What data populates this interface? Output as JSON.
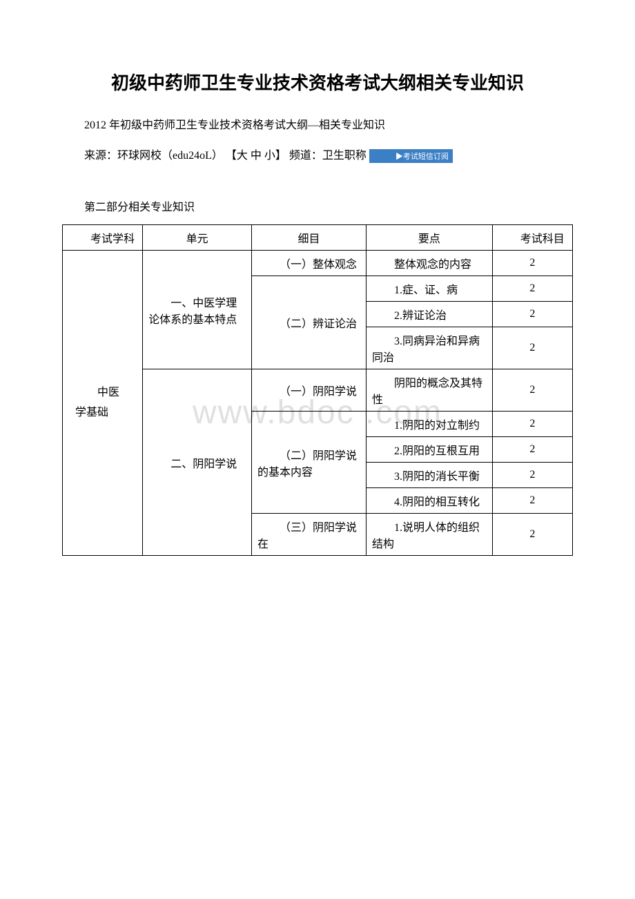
{
  "page": {
    "main_title": "初级中药师卫生专业技术资格考试大纲相关专业知识",
    "subtitle": "2012 年初级中药师卫生专业技术资格考试大纲—相关专业知识",
    "source_prefix": "来源：环球网校（edu24oL） ",
    "size_options": "【大 中 小】",
    "channel_label": " 频道：卫生职称 ",
    "sms_badge": "▶考试短信订阅",
    "section_title": "第二部分相关专业知识",
    "watermark": "www.bdoc .com"
  },
  "table": {
    "headers": {
      "col1": "考试学科",
      "col2": "单元",
      "col3": "细目",
      "col4": "要点",
      "col5": "考试科目"
    },
    "subject": "中医学基础",
    "units": [
      {
        "unit_label": "一、中医学理论体系的基本特点",
        "items": [
          {
            "item_label": "（一）整体观念",
            "points": [
              {
                "text": "整体观念的内容",
                "score": "2"
              }
            ]
          },
          {
            "item_label": "（二）辨证论治",
            "points": [
              {
                "text": "1.症、证、病",
                "score": "2"
              },
              {
                "text": "2.辨证论治",
                "score": "2"
              },
              {
                "text": "3.同病异治和异病同治",
                "score": "2"
              }
            ]
          }
        ]
      },
      {
        "unit_label": "二、阴阳学说",
        "items": [
          {
            "item_label": "（一）阴阳学说",
            "points": [
              {
                "text": "阴阳的概念及其特性",
                "score": "2"
              }
            ]
          },
          {
            "item_label": "（二）阴阳学说的基本内容",
            "points": [
              {
                "text": "1.阴阳的对立制约",
                "score": "2"
              },
              {
                "text": "2.阴阳的互根互用",
                "score": "2"
              },
              {
                "text": "3.阴阳的消长平衡",
                "score": "2"
              },
              {
                "text": "4.阴阳的相互转化",
                "score": "2"
              }
            ]
          },
          {
            "item_label": "（三）阴阳学说在",
            "points": [
              {
                "text": "1.说明人体的组织结构",
                "score": "2"
              }
            ]
          }
        ]
      }
    ]
  }
}
